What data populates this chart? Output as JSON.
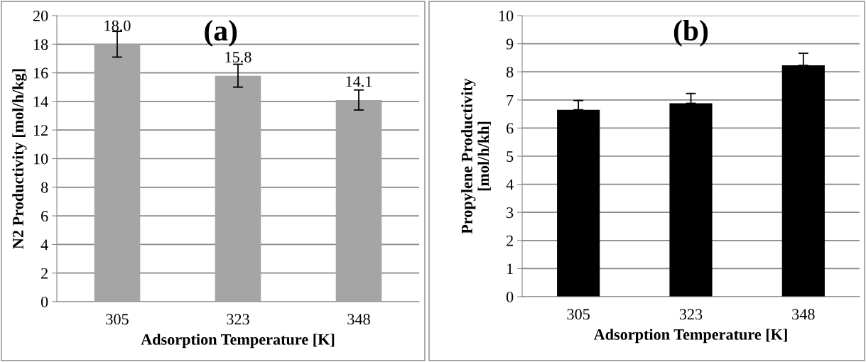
{
  "chart_data": [
    {
      "type": "bar",
      "title": "(a)",
      "xlabel": "Adsorption Temperature [K]",
      "ylabel": "N2 Productivity [mol/h/kg]",
      "categories": [
        "305",
        "323",
        "348"
      ],
      "series": [
        {
          "color": "#a5a5a5",
          "values": [
            18.0,
            15.8,
            14.1
          ],
          "errors": [
            0.9,
            0.8,
            0.7
          ],
          "value_labels": [
            "18.0",
            "15.8",
            "14.1"
          ]
        }
      ],
      "ylim": [
        0,
        20
      ],
      "yticks": [
        0,
        2,
        4,
        6,
        8,
        10,
        12,
        14,
        16,
        18,
        20
      ],
      "grid": "y"
    },
    {
      "type": "bar",
      "title": "(b)",
      "xlabel": "Adsorption Temperature [K]",
      "ylabel": "Propylene Productivity\n[mol/h/kh]",
      "categories": [
        "305",
        "323",
        "348"
      ],
      "series": [
        {
          "color": "#000000",
          "values": [
            6.65,
            6.88,
            8.23
          ],
          "errors": [
            [
              6.65,
              6.98
            ],
            [
              6.88,
              7.23
            ],
            [
              8.23,
              8.66
            ]
          ]
        }
      ],
      "ylim": [
        0,
        10
      ],
      "yticks": [
        0,
        1,
        2,
        3,
        4,
        5,
        6,
        7,
        8,
        9,
        10
      ],
      "grid": "y"
    }
  ]
}
